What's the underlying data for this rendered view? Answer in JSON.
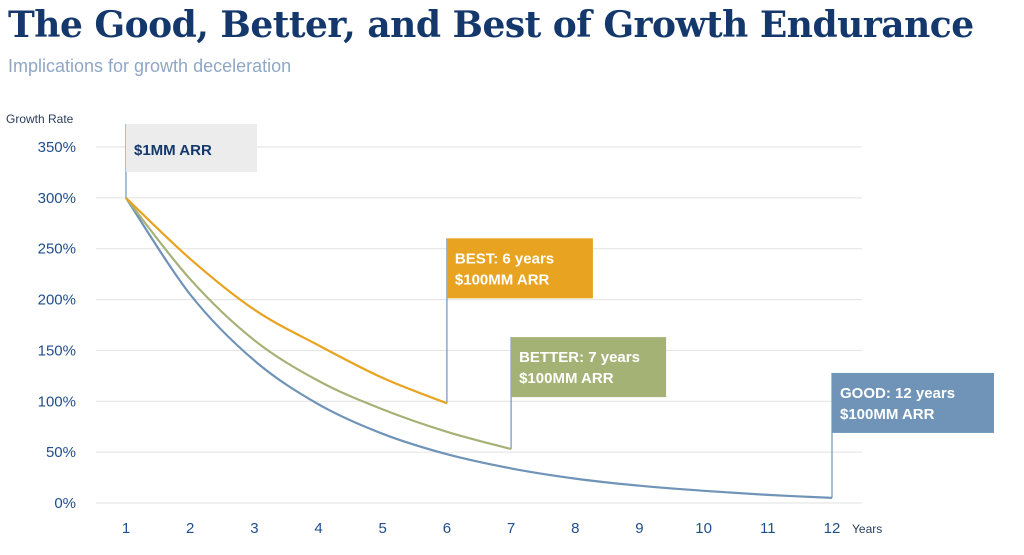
{
  "colors": {
    "title": "#14386b",
    "subtitle": "#8fa7c4",
    "tick": "#1f4e8c",
    "grid": "#e2e2e2",
    "good": "#6f94b8",
    "better": "#a4b276",
    "best": "#e8a320",
    "start_box": "#ececec",
    "start_text": "#14386b"
  },
  "chart_data": {
    "type": "line",
    "title": "The Good, Better, and Best of Growth Endurance",
    "subtitle": "Implications for growth deceleration",
    "xlabel": "Years",
    "ylabel": "Growth Rate",
    "x_ticks": [
      1,
      2,
      3,
      4,
      5,
      6,
      7,
      8,
      9,
      10,
      11,
      12
    ],
    "y_ticks": [
      "0%",
      "50%",
      "100%",
      "150%",
      "200%",
      "250%",
      "300%",
      "350%"
    ],
    "xlim": [
      1,
      12
    ],
    "ylim": [
      0,
      350
    ],
    "grid": true,
    "series": [
      {
        "id": "best",
        "x": [
          1,
          2,
          3,
          4,
          5,
          6
        ],
        "values": [
          300,
          240,
          190,
          155,
          123,
          98
        ]
      },
      {
        "id": "better",
        "x": [
          1,
          2,
          3,
          4,
          5,
          6,
          7
        ],
        "values": [
          300,
          220,
          160,
          120,
          92,
          70,
          53
        ]
      },
      {
        "id": "good",
        "x": [
          1,
          2,
          3,
          4,
          5,
          6,
          7,
          8,
          9,
          10,
          11,
          12
        ],
        "values": [
          300,
          205,
          140,
          97,
          68,
          48,
          34,
          24,
          17,
          12,
          8,
          5
        ]
      }
    ],
    "annotations": [
      {
        "id": "start",
        "lines": [
          "$1MM ARR"
        ],
        "x": 1,
        "y": 350
      },
      {
        "id": "best",
        "lines": [
          "BEST: 6 years",
          "$100MM ARR"
        ],
        "x": 6,
        "y": 98
      },
      {
        "id": "better",
        "lines": [
          "BETTER: 7 years",
          "$100MM ARR"
        ],
        "x": 7,
        "y": 53
      },
      {
        "id": "good",
        "lines": [
          "GOOD: 12 years",
          "$100MM ARR"
        ],
        "x": 12,
        "y": 5
      }
    ]
  }
}
